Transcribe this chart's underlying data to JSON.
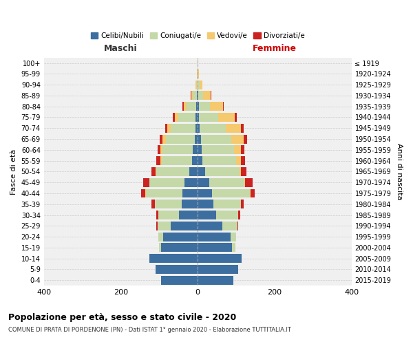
{
  "age_groups": [
    "0-4",
    "5-9",
    "10-14",
    "15-19",
    "20-24",
    "25-29",
    "30-34",
    "35-39",
    "40-44",
    "45-49",
    "50-54",
    "55-59",
    "60-64",
    "65-69",
    "70-74",
    "75-79",
    "80-84",
    "85-89",
    "90-94",
    "95-99",
    "100+"
  ],
  "birth_years": [
    "2015-2019",
    "2010-2014",
    "2005-2009",
    "2000-2004",
    "1995-1999",
    "1990-1994",
    "1985-1989",
    "1980-1984",
    "1975-1979",
    "1970-1974",
    "1965-1969",
    "1960-1964",
    "1955-1959",
    "1950-1954",
    "1945-1949",
    "1940-1944",
    "1935-1939",
    "1930-1934",
    "1925-1929",
    "1920-1924",
    "≤ 1919"
  ],
  "males": {
    "celibi": [
      95,
      110,
      125,
      95,
      90,
      70,
      48,
      42,
      40,
      35,
      22,
      14,
      12,
      8,
      5,
      5,
      4,
      2,
      0,
      0,
      0
    ],
    "coniugati": [
      0,
      0,
      0,
      5,
      12,
      35,
      55,
      70,
      95,
      90,
      85,
      80,
      80,
      75,
      65,
      45,
      25,
      10,
      3,
      1,
      0
    ],
    "vedovi": [
      0,
      0,
      0,
      0,
      0,
      0,
      0,
      0,
      1,
      1,
      2,
      3,
      5,
      8,
      10,
      10,
      8,
      5,
      3,
      1,
      0
    ],
    "divorziati": [
      0,
      0,
      0,
      0,
      0,
      2,
      5,
      8,
      12,
      15,
      12,
      10,
      8,
      8,
      5,
      5,
      2,
      1,
      0,
      0,
      0
    ]
  },
  "females": {
    "nubili": [
      92,
      105,
      115,
      90,
      85,
      65,
      48,
      40,
      38,
      30,
      20,
      12,
      10,
      8,
      5,
      4,
      3,
      2,
      0,
      0,
      0
    ],
    "coniugate": [
      0,
      0,
      0,
      8,
      15,
      38,
      58,
      72,
      98,
      92,
      88,
      88,
      85,
      80,
      68,
      50,
      28,
      12,
      5,
      1,
      0
    ],
    "vedove": [
      0,
      0,
      0,
      0,
      0,
      0,
      0,
      0,
      1,
      2,
      5,
      12,
      18,
      32,
      40,
      42,
      35,
      20,
      8,
      3,
      1
    ],
    "divorziate": [
      0,
      0,
      0,
      0,
      0,
      2,
      5,
      8,
      12,
      18,
      14,
      12,
      8,
      8,
      6,
      5,
      2,
      1,
      0,
      0,
      0
    ]
  },
  "colors": {
    "celibi": "#3d6ea0",
    "coniugati": "#c5d9a8",
    "vedovi": "#f5c96e",
    "divorziati": "#cc2222"
  },
  "title": "Popolazione per età, sesso e stato civile - 2020",
  "subtitle": "COMUNE DI PRATA DI PORDENONE (PN) - Dati ISTAT 1° gennaio 2020 - Elaborazione TUTTITALIA.IT",
  "xlabel_left": "Maschi",
  "xlabel_right": "Femmine",
  "ylabel": "Fasce di età",
  "ylabel_right": "Anni di nascita",
  "xlim": 400,
  "legend_labels": [
    "Celibi/Nubili",
    "Coniugati/e",
    "Vedovi/e",
    "Divorziati/e"
  ],
  "background_color": "#ffffff",
  "axes_bg": "#f0f0f0"
}
